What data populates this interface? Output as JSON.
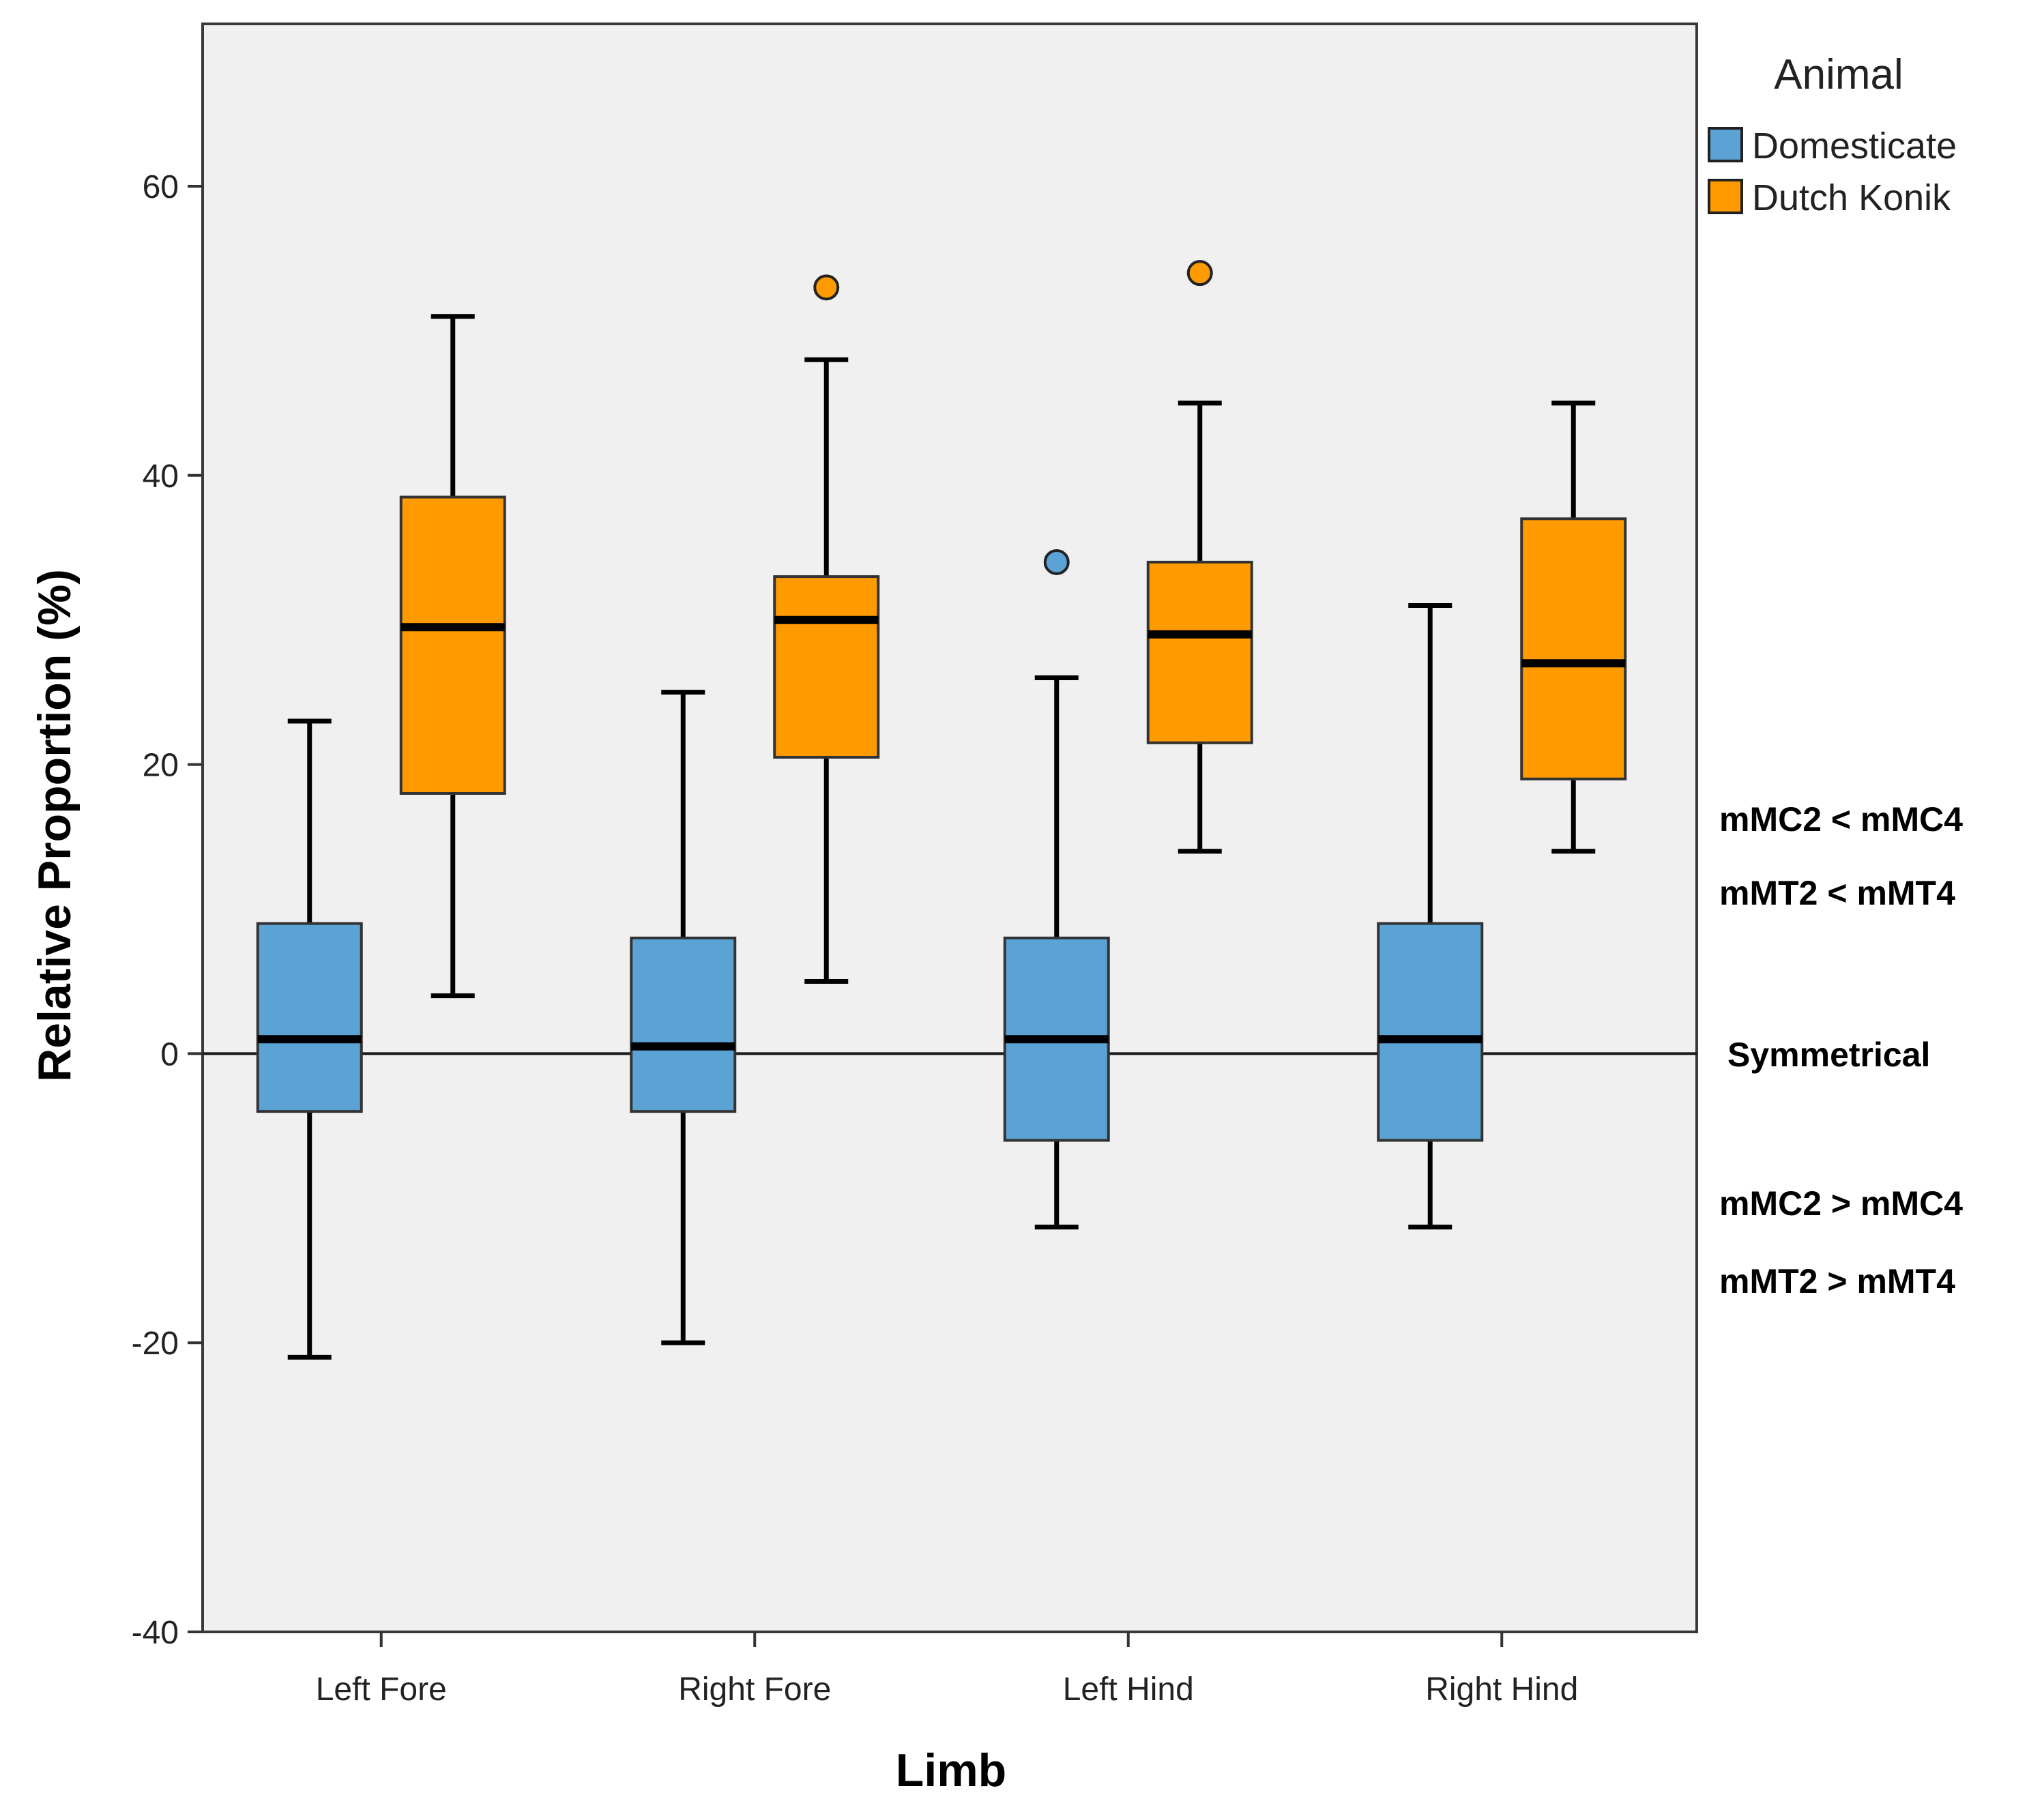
{
  "chart_data": {
    "type": "boxplot",
    "title": "",
    "xlabel": "Limb",
    "ylabel": "Relative Proportion  (%)",
    "ylim": [
      -40,
      70
    ],
    "yticks": [
      -40,
      -20,
      0,
      20,
      40,
      60
    ],
    "ytick_labels": [
      "-40",
      "-20",
      "0",
      "20",
      "40",
      "60"
    ],
    "categories": [
      "Left Fore",
      "Right Fore",
      "Left Hind",
      "Right Hind"
    ],
    "legend": {
      "title": "Animal",
      "position": "top-right, outside plot"
    },
    "reference_line": {
      "y": 0,
      "label": "Symmetrical"
    },
    "annotations": {
      "above": [
        "mMC2 < mMC4",
        "mMT2 < mMT4"
      ],
      "below": [
        "mMC2 > mMC4",
        "mMT2 > mMT4"
      ]
    },
    "grid": false,
    "series": [
      {
        "name": "Domesticate",
        "color": "#5BA3D4",
        "boxes": [
          {
            "category": "Left Fore",
            "whisker_low": -21,
            "q1": -4,
            "median": 1.0,
            "q3": 9,
            "whisker_high": 23,
            "outliers": []
          },
          {
            "category": "Right Fore",
            "whisker_low": -20,
            "q1": -4,
            "median": 0.5,
            "q3": 8,
            "whisker_high": 25,
            "outliers": []
          },
          {
            "category": "Left Hind",
            "whisker_low": -12,
            "q1": -6,
            "median": 1.0,
            "q3": 8,
            "whisker_high": 26,
            "outliers": [
              34
            ]
          },
          {
            "category": "Right Hind",
            "whisker_low": -12,
            "q1": -6,
            "median": 1.0,
            "q3": 9,
            "whisker_high": 31,
            "outliers": []
          }
        ]
      },
      {
        "name": "Dutch Konik",
        "color": "#FF9A00",
        "boxes": [
          {
            "category": "Left Fore",
            "whisker_low": 4,
            "q1": 18,
            "median": 29.5,
            "q3": 38.5,
            "whisker_high": 51,
            "outliers": []
          },
          {
            "category": "Right Fore",
            "whisker_low": 5,
            "q1": 20.5,
            "median": 30,
            "q3": 33,
            "whisker_high": 48,
            "outliers": [
              53
            ]
          },
          {
            "category": "Left Hind",
            "whisker_low": 14,
            "q1": 21.5,
            "median": 29,
            "q3": 34,
            "whisker_high": 45,
            "outliers": [
              54
            ]
          },
          {
            "category": "Right Hind",
            "whisker_low": 14,
            "q1": 19,
            "median": 27,
            "q3": 37,
            "whisker_high": 45,
            "outliers": []
          }
        ]
      }
    ]
  }
}
